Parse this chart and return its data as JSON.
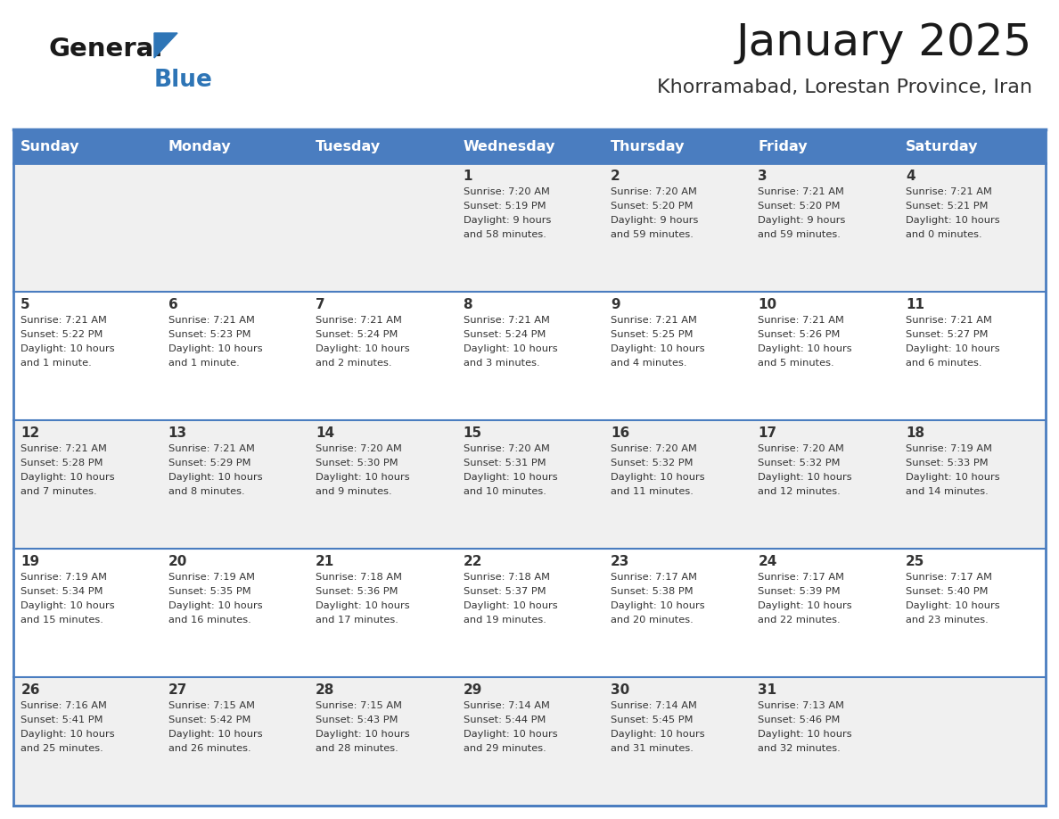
{
  "title": "January 2025",
  "subtitle": "Khorramabad, Lorestan Province, Iran",
  "days_of_week": [
    "Sunday",
    "Monday",
    "Tuesday",
    "Wednesday",
    "Thursday",
    "Friday",
    "Saturday"
  ],
  "header_bg_color": "#4A7DC0",
  "header_text_color": "#FFFFFF",
  "cell_bg_color_odd": "#F0F0F0",
  "cell_bg_color_even": "#FFFFFF",
  "border_color": "#4A7DC0",
  "title_color": "#1a1a1a",
  "subtitle_color": "#333333",
  "general_text_color": "#333333",
  "logo_general_color": "#1a1a1a",
  "logo_blue_color": "#2E75B6",
  "calendar_data": [
    {
      "day": 1,
      "col": 3,
      "row": 0,
      "sunrise": "7:20 AM",
      "sunset": "5:19 PM",
      "daylight_hours": 9,
      "daylight_minutes": 58
    },
    {
      "day": 2,
      "col": 4,
      "row": 0,
      "sunrise": "7:20 AM",
      "sunset": "5:20 PM",
      "daylight_hours": 9,
      "daylight_minutes": 59
    },
    {
      "day": 3,
      "col": 5,
      "row": 0,
      "sunrise": "7:21 AM",
      "sunset": "5:20 PM",
      "daylight_hours": 9,
      "daylight_minutes": 59
    },
    {
      "day": 4,
      "col": 6,
      "row": 0,
      "sunrise": "7:21 AM",
      "sunset": "5:21 PM",
      "daylight_hours": 10,
      "daylight_minutes": 0
    },
    {
      "day": 5,
      "col": 0,
      "row": 1,
      "sunrise": "7:21 AM",
      "sunset": "5:22 PM",
      "daylight_hours": 10,
      "daylight_minutes": 1
    },
    {
      "day": 6,
      "col": 1,
      "row": 1,
      "sunrise": "7:21 AM",
      "sunset": "5:23 PM",
      "daylight_hours": 10,
      "daylight_minutes": 1
    },
    {
      "day": 7,
      "col": 2,
      "row": 1,
      "sunrise": "7:21 AM",
      "sunset": "5:24 PM",
      "daylight_hours": 10,
      "daylight_minutes": 2
    },
    {
      "day": 8,
      "col": 3,
      "row": 1,
      "sunrise": "7:21 AM",
      "sunset": "5:24 PM",
      "daylight_hours": 10,
      "daylight_minutes": 3
    },
    {
      "day": 9,
      "col": 4,
      "row": 1,
      "sunrise": "7:21 AM",
      "sunset": "5:25 PM",
      "daylight_hours": 10,
      "daylight_minutes": 4
    },
    {
      "day": 10,
      "col": 5,
      "row": 1,
      "sunrise": "7:21 AM",
      "sunset": "5:26 PM",
      "daylight_hours": 10,
      "daylight_minutes": 5
    },
    {
      "day": 11,
      "col": 6,
      "row": 1,
      "sunrise": "7:21 AM",
      "sunset": "5:27 PM",
      "daylight_hours": 10,
      "daylight_minutes": 6
    },
    {
      "day": 12,
      "col": 0,
      "row": 2,
      "sunrise": "7:21 AM",
      "sunset": "5:28 PM",
      "daylight_hours": 10,
      "daylight_minutes": 7
    },
    {
      "day": 13,
      "col": 1,
      "row": 2,
      "sunrise": "7:21 AM",
      "sunset": "5:29 PM",
      "daylight_hours": 10,
      "daylight_minutes": 8
    },
    {
      "day": 14,
      "col": 2,
      "row": 2,
      "sunrise": "7:20 AM",
      "sunset": "5:30 PM",
      "daylight_hours": 10,
      "daylight_minutes": 9
    },
    {
      "day": 15,
      "col": 3,
      "row": 2,
      "sunrise": "7:20 AM",
      "sunset": "5:31 PM",
      "daylight_hours": 10,
      "daylight_minutes": 10
    },
    {
      "day": 16,
      "col": 4,
      "row": 2,
      "sunrise": "7:20 AM",
      "sunset": "5:32 PM",
      "daylight_hours": 10,
      "daylight_minutes": 11
    },
    {
      "day": 17,
      "col": 5,
      "row": 2,
      "sunrise": "7:20 AM",
      "sunset": "5:32 PM",
      "daylight_hours": 10,
      "daylight_minutes": 12
    },
    {
      "day": 18,
      "col": 6,
      "row": 2,
      "sunrise": "7:19 AM",
      "sunset": "5:33 PM",
      "daylight_hours": 10,
      "daylight_minutes": 14
    },
    {
      "day": 19,
      "col": 0,
      "row": 3,
      "sunrise": "7:19 AM",
      "sunset": "5:34 PM",
      "daylight_hours": 10,
      "daylight_minutes": 15
    },
    {
      "day": 20,
      "col": 1,
      "row": 3,
      "sunrise": "7:19 AM",
      "sunset": "5:35 PM",
      "daylight_hours": 10,
      "daylight_minutes": 16
    },
    {
      "day": 21,
      "col": 2,
      "row": 3,
      "sunrise": "7:18 AM",
      "sunset": "5:36 PM",
      "daylight_hours": 10,
      "daylight_minutes": 17
    },
    {
      "day": 22,
      "col": 3,
      "row": 3,
      "sunrise": "7:18 AM",
      "sunset": "5:37 PM",
      "daylight_hours": 10,
      "daylight_minutes": 19
    },
    {
      "day": 23,
      "col": 4,
      "row": 3,
      "sunrise": "7:17 AM",
      "sunset": "5:38 PM",
      "daylight_hours": 10,
      "daylight_minutes": 20
    },
    {
      "day": 24,
      "col": 5,
      "row": 3,
      "sunrise": "7:17 AM",
      "sunset": "5:39 PM",
      "daylight_hours": 10,
      "daylight_minutes": 22
    },
    {
      "day": 25,
      "col": 6,
      "row": 3,
      "sunrise": "7:17 AM",
      "sunset": "5:40 PM",
      "daylight_hours": 10,
      "daylight_minutes": 23
    },
    {
      "day": 26,
      "col": 0,
      "row": 4,
      "sunrise": "7:16 AM",
      "sunset": "5:41 PM",
      "daylight_hours": 10,
      "daylight_minutes": 25
    },
    {
      "day": 27,
      "col": 1,
      "row": 4,
      "sunrise": "7:15 AM",
      "sunset": "5:42 PM",
      "daylight_hours": 10,
      "daylight_minutes": 26
    },
    {
      "day": 28,
      "col": 2,
      "row": 4,
      "sunrise": "7:15 AM",
      "sunset": "5:43 PM",
      "daylight_hours": 10,
      "daylight_minutes": 28
    },
    {
      "day": 29,
      "col": 3,
      "row": 4,
      "sunrise": "7:14 AM",
      "sunset": "5:44 PM",
      "daylight_hours": 10,
      "daylight_minutes": 29
    },
    {
      "day": 30,
      "col": 4,
      "row": 4,
      "sunrise": "7:14 AM",
      "sunset": "5:45 PM",
      "daylight_hours": 10,
      "daylight_minutes": 31
    },
    {
      "day": 31,
      "col": 5,
      "row": 4,
      "sunrise": "7:13 AM",
      "sunset": "5:46 PM",
      "daylight_hours": 10,
      "daylight_minutes": 32
    }
  ]
}
